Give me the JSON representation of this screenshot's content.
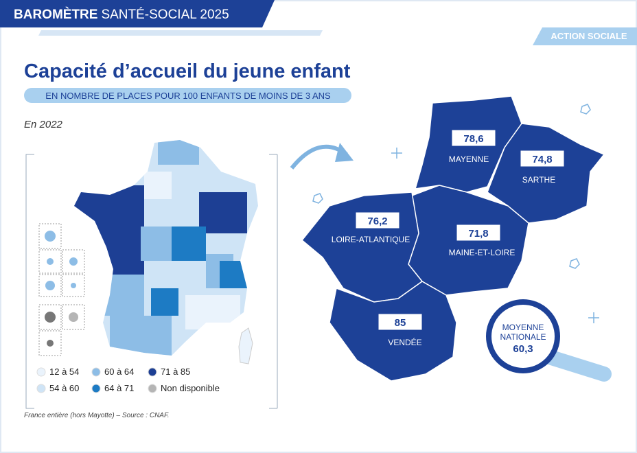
{
  "header": {
    "brand_bold": "BAROMÈTRE",
    "brand": "SANTÉ-SOCIAL 2025",
    "tag": "ACTION SOCIALE"
  },
  "title": "Capacité d’accueil du jeune enfant",
  "subtitle": "EN NOMBRE DE PLACES POUR 100  ENFANTS DE MOINS DE 3 ANS",
  "year": "En 2022",
  "legend": [
    {
      "label": "12 à 54",
      "color": "#eaf3fc"
    },
    {
      "label": "54 à 60",
      "color": "#cfe4f6"
    },
    {
      "label": "60 à 64",
      "color": "#8dbde6"
    },
    {
      "label": "64 à 71",
      "color": "#1d7bc4"
    },
    {
      "label": "71 à 85",
      "color": "#1d3f94"
    },
    {
      "label": "Non disponible",
      "color": "#b5b5b5"
    }
  ],
  "regions": [
    {
      "name": "MAYENNE",
      "value": "78,6"
    },
    {
      "name": "SARTHE",
      "value": "74,8"
    },
    {
      "name": "LOIRE-ATLANTIQUE",
      "value": "76,2"
    },
    {
      "name": "MAINE-ET-LOIRE",
      "value": "71,8"
    },
    {
      "name": "VENDÉE",
      "value": "85"
    }
  ],
  "national": {
    "label": "MOYENNE NATIONALE",
    "value": "60,3"
  },
  "source": "France entière (hors Mayotte) – Source : CNAF."
}
